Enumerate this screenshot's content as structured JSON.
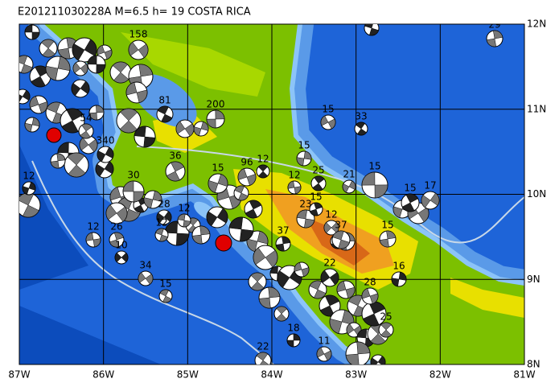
{
  "title": "E201211030228A  M=6.5  h= 19  COSTA RICA",
  "x_labels": [
    "87W",
    "86W",
    "85W",
    "84W",
    "83W",
    "82W",
    "81W"
  ],
  "y_labels": [
    "12N",
    "11N",
    "10N",
    "9N",
    "8N"
  ],
  "event_labels": [
    "15",
    "29",
    "158",
    "81",
    "200",
    "15",
    "33",
    "15",
    "96",
    "12",
    "15",
    "12",
    "25",
    "21",
    "15",
    "15",
    "17",
    "23",
    "15",
    "12",
    "37",
    "37",
    "34",
    "15",
    "18",
    "11",
    "22",
    "16",
    "28",
    "25",
    "12",
    "12",
    "54",
    "340",
    "30",
    "36",
    "28",
    "12",
    "26",
    "10",
    "12",
    "15",
    "22"
  ]
}
